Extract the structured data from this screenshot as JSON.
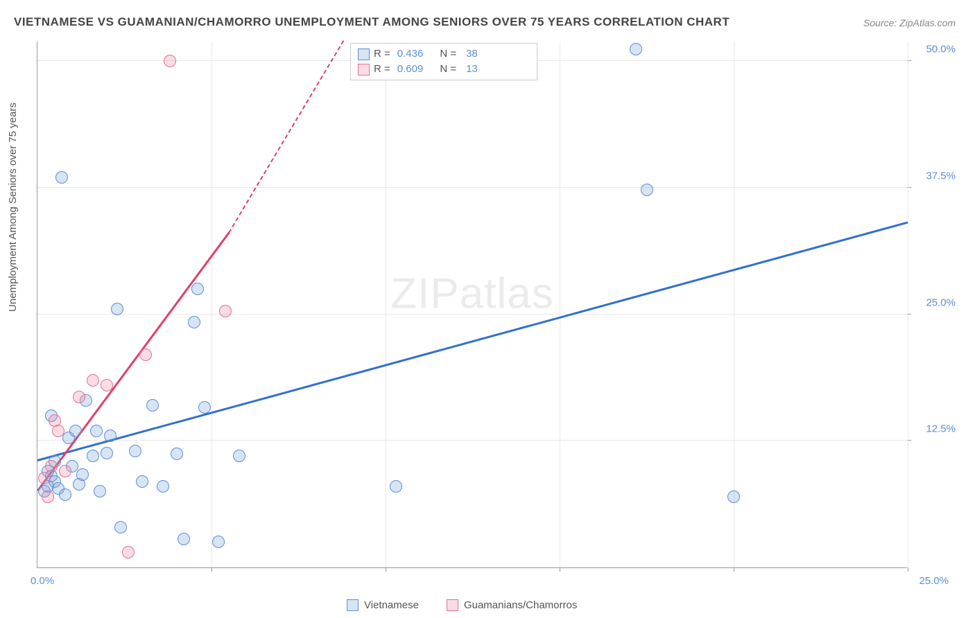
{
  "title": "VIETNAMESE VS GUAMANIAN/CHAMORRO UNEMPLOYMENT AMONG SENIORS OVER 75 YEARS CORRELATION CHART",
  "source": "Source: ZipAtlas.com",
  "ylabel": "Unemployment Among Seniors over 75 years",
  "watermark_a": "ZIP",
  "watermark_b": "atlas",
  "chart": {
    "type": "scatter",
    "background_color": "#ffffff",
    "grid_color": "#e8e8e8",
    "axis_color": "#999999",
    "xlim": [
      0,
      25
    ],
    "ylim": [
      0,
      52
    ],
    "x_ticks": [
      0,
      5,
      10,
      15,
      20,
      25
    ],
    "y_ticks": [
      12.5,
      25.0,
      37.5,
      50.0
    ],
    "y_tick_labels": [
      "12.5%",
      "25.0%",
      "37.5%",
      "50.0%"
    ],
    "x_tick_origin": "0.0%",
    "x_tick_max": "25.0%",
    "marker_radius": 9,
    "marker_stroke_width": 1.3,
    "trend_line_width": 2.5,
    "series": [
      {
        "name": "Vietnamese",
        "fill": "rgba(120,165,220,0.30)",
        "stroke": "#5b8fd6",
        "trend_color": "#2f6fd0",
        "R": "0.436",
        "N": "38",
        "trend": {
          "x1": 0,
          "y1": 10.5,
          "x2": 25,
          "y2": 34.0
        },
        "points": [
          [
            0.2,
            7.5
          ],
          [
            0.3,
            8.0
          ],
          [
            0.4,
            9.0
          ],
          [
            0.5,
            8.5
          ],
          [
            0.6,
            7.8
          ],
          [
            0.8,
            7.2
          ],
          [
            0.9,
            12.8
          ],
          [
            1.0,
            10.0
          ],
          [
            1.1,
            13.5
          ],
          [
            1.2,
            8.2
          ],
          [
            1.4,
            16.5
          ],
          [
            1.6,
            11.0
          ],
          [
            1.8,
            7.5
          ],
          [
            2.0,
            11.3
          ],
          [
            2.1,
            13.0
          ],
          [
            2.3,
            25.5
          ],
          [
            2.4,
            4.0
          ],
          [
            2.8,
            11.5
          ],
          [
            3.0,
            8.5
          ],
          [
            3.3,
            16.0
          ],
          [
            3.6,
            8.0
          ],
          [
            4.0,
            11.2
          ],
          [
            4.2,
            2.8
          ],
          [
            4.5,
            24.2
          ],
          [
            4.6,
            27.5
          ],
          [
            4.8,
            15.8
          ],
          [
            5.2,
            2.5
          ],
          [
            5.8,
            11.0
          ],
          [
            10.3,
            8.0
          ],
          [
            17.2,
            51.2
          ],
          [
            17.5,
            37.3
          ],
          [
            20.0,
            7.0
          ],
          [
            0.7,
            38.5
          ],
          [
            0.4,
            15.0
          ],
          [
            1.3,
            9.2
          ],
          [
            0.5,
            10.5
          ],
          [
            1.7,
            13.5
          ],
          [
            0.3,
            9.5
          ]
        ]
      },
      {
        "name": "Guamanians/Chamorros",
        "fill": "rgba(235,140,165,0.30)",
        "stroke": "#e76f91",
        "trend_color": "#e23e6a",
        "R": "0.609",
        "N": "13",
        "trend": {
          "x1": 0,
          "y1": 7.5,
          "x2": 5.5,
          "y2": 33.0,
          "dash_to_x": 8.8,
          "dash_to_y": 52
        },
        "points": [
          [
            0.2,
            8.8
          ],
          [
            0.3,
            7.0
          ],
          [
            0.4,
            10.0
          ],
          [
            0.5,
            14.5
          ],
          [
            0.8,
            9.5
          ],
          [
            1.2,
            16.8
          ],
          [
            1.6,
            18.5
          ],
          [
            2.0,
            18.0
          ],
          [
            2.6,
            1.5
          ],
          [
            3.1,
            21.0
          ],
          [
            3.8,
            50.0
          ],
          [
            5.4,
            25.3
          ],
          [
            0.6,
            13.5
          ]
        ]
      }
    ]
  },
  "legend_top": {
    "r_label": "R =",
    "n_label": "N ="
  },
  "legend_bottom": {
    "items": [
      "Vietnamese",
      "Guamanians/Chamorros"
    ]
  }
}
